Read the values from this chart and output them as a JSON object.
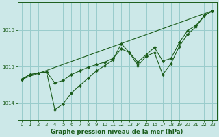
{
  "background_color": "#cce8e8",
  "grid_color": "#99cccc",
  "line_color": "#1a5c1a",
  "title": "Graphe pression niveau de la mer (hPa)",
  "xlim": [
    -0.5,
    23.5
  ],
  "ylim": [
    1013.55,
    1016.75
  ],
  "yticks": [
    1014,
    1015,
    1016
  ],
  "xticks": [
    0,
    1,
    2,
    3,
    4,
    5,
    6,
    7,
    8,
    9,
    10,
    11,
    12,
    13,
    14,
    15,
    16,
    17,
    18,
    19,
    20,
    21,
    22,
    23
  ],
  "series1_x": [
    0,
    1,
    2,
    3,
    4,
    5,
    6,
    7,
    8,
    9,
    10,
    11,
    12,
    13,
    14,
    15,
    16,
    17,
    18,
    19,
    20,
    21,
    22,
    23
  ],
  "series1_y": [
    1014.65,
    1014.78,
    1014.82,
    1014.85,
    1013.82,
    1013.98,
    1014.28,
    1014.48,
    1014.68,
    1014.88,
    1015.02,
    1015.18,
    1015.62,
    1015.38,
    1015.02,
    1015.28,
    1015.38,
    1014.78,
    1015.08,
    1015.55,
    1015.88,
    1016.08,
    1016.38,
    1016.52
  ],
  "series2_x": [
    0,
    1,
    2,
    3,
    4,
    5,
    6,
    7,
    8,
    9,
    10,
    11,
    12,
    13,
    14,
    15,
    16,
    17,
    18,
    19,
    20,
    21,
    22,
    23
  ],
  "series2_y": [
    1014.65,
    1014.78,
    1014.82,
    1014.85,
    1014.55,
    1014.62,
    1014.78,
    1014.88,
    1014.98,
    1015.05,
    1015.12,
    1015.22,
    1015.48,
    1015.38,
    1015.12,
    1015.32,
    1015.52,
    1015.15,
    1015.22,
    1015.65,
    1015.98,
    1016.12,
    1016.38,
    1016.52
  ],
  "trend_x": [
    0,
    23
  ],
  "trend_y": [
    1014.65,
    1016.52
  ],
  "marker": "D",
  "marker_size": 2.2,
  "linewidth": 0.8,
  "tick_fontsize": 5.0,
  "title_fontsize": 6.2
}
